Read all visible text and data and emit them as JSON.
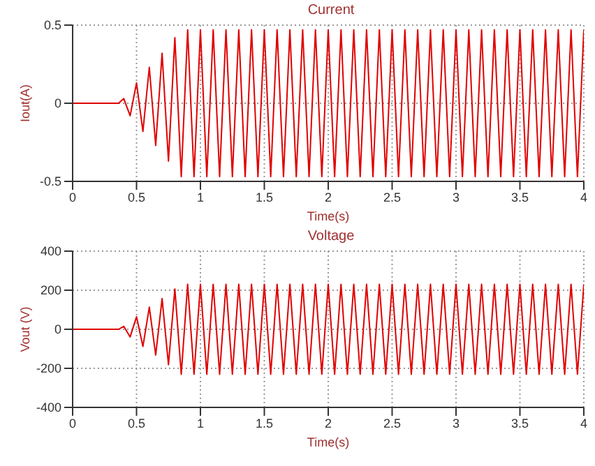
{
  "chart_data": [
    {
      "type": "line",
      "title": "Current",
      "xlabel": "Time(s)",
      "ylabel": "Iout(A)",
      "color": "#e00000",
      "grid": true,
      "xlim": [
        0,
        4
      ],
      "ylim": [
        -0.5,
        0.5
      ],
      "xticks": [
        0,
        0.5,
        1,
        1.5,
        2,
        2.5,
        3,
        3.5,
        4
      ],
      "yticks": [
        -0.5,
        0,
        0.5
      ],
      "x": [
        0,
        0.36,
        0.4,
        0.45,
        0.5,
        0.55,
        0.6,
        0.65,
        0.7,
        0.75,
        0.8,
        0.85,
        0.9,
        0.95,
        1,
        1.05,
        1.1,
        1.15,
        1.2,
        1.25,
        1.3,
        1.35,
        1.4,
        1.45,
        1.5,
        1.55,
        1.6,
        1.65,
        1.7,
        1.75,
        1.8,
        1.85,
        1.9,
        1.95,
        2,
        2.05,
        2.1,
        2.15,
        2.2,
        2.25,
        2.3,
        2.35,
        2.4,
        2.45,
        2.5,
        2.55,
        2.6,
        2.65,
        2.7,
        2.75,
        2.8,
        2.85,
        2.9,
        2.95,
        3,
        3.05,
        3.1,
        3.15,
        3.2,
        3.25,
        3.3,
        3.35,
        3.4,
        3.45,
        3.5,
        3.55,
        3.6,
        3.65,
        3.7,
        3.75,
        3.8,
        3.85,
        3.9,
        3.95,
        4
      ],
      "values": [
        0,
        0,
        0.03,
        -0.08,
        0.13,
        -0.18,
        0.23,
        -0.27,
        0.32,
        -0.37,
        0.42,
        -0.47,
        0.47,
        -0.47,
        0.47,
        -0.47,
        0.47,
        -0.47,
        0.47,
        -0.47,
        0.47,
        -0.47,
        0.47,
        -0.47,
        0.47,
        -0.47,
        0.47,
        -0.47,
        0.47,
        -0.47,
        0.47,
        -0.47,
        0.47,
        -0.47,
        0.47,
        -0.47,
        0.47,
        -0.47,
        0.47,
        -0.47,
        0.47,
        -0.47,
        0.47,
        -0.47,
        0.47,
        -0.47,
        0.47,
        -0.47,
        0.47,
        -0.47,
        0.47,
        -0.47,
        0.47,
        -0.47,
        0.47,
        -0.47,
        0.47,
        -0.47,
        0.47,
        -0.47,
        0.47,
        -0.47,
        0.47,
        -0.47,
        0.47,
        -0.47,
        0.47,
        -0.47,
        0.47,
        -0.47,
        0.47,
        -0.47,
        0.47,
        -0.47,
        0.47
      ]
    },
    {
      "type": "line",
      "title": "Voltage",
      "xlabel": "Time(s)",
      "ylabel": "Vout (V)",
      "color": "#e00000",
      "grid": true,
      "xlim": [
        0,
        4
      ],
      "ylim": [
        -400,
        400
      ],
      "xticks": [
        0,
        0.5,
        1,
        1.5,
        2,
        2.5,
        3,
        3.5,
        4
      ],
      "yticks": [
        -400,
        -200,
        0,
        200,
        400
      ],
      "x": [
        0,
        0.36,
        0.4,
        0.45,
        0.5,
        0.55,
        0.6,
        0.65,
        0.7,
        0.75,
        0.8,
        0.85,
        0.9,
        0.95,
        1,
        1.05,
        1.1,
        1.15,
        1.2,
        1.25,
        1.3,
        1.35,
        1.4,
        1.45,
        1.5,
        1.55,
        1.6,
        1.65,
        1.7,
        1.75,
        1.8,
        1.85,
        1.9,
        1.95,
        2,
        2.05,
        2.1,
        2.15,
        2.2,
        2.25,
        2.3,
        2.35,
        2.4,
        2.45,
        2.5,
        2.55,
        2.6,
        2.65,
        2.7,
        2.75,
        2.8,
        2.85,
        2.9,
        2.95,
        3,
        3.05,
        3.1,
        3.15,
        3.2,
        3.25,
        3.3,
        3.35,
        3.4,
        3.45,
        3.5,
        3.55,
        3.6,
        3.65,
        3.7,
        3.75,
        3.8,
        3.85,
        3.9,
        3.95,
        4
      ],
      "values": [
        0,
        0,
        15,
        -39,
        64,
        -88,
        113,
        -132,
        157,
        -181,
        206,
        -230,
        230,
        -230,
        230,
        -230,
        230,
        -230,
        230,
        -230,
        230,
        -230,
        230,
        -230,
        230,
        -230,
        230,
        -230,
        230,
        -230,
        230,
        -230,
        230,
        -230,
        230,
        -230,
        230,
        -230,
        230,
        -230,
        230,
        -230,
        230,
        -230,
        230,
        -230,
        230,
        -230,
        230,
        -230,
        230,
        -230,
        230,
        -230,
        230,
        -230,
        230,
        -230,
        230,
        -230,
        230,
        -230,
        230,
        -230,
        230,
        -230,
        230,
        -230,
        230,
        -230,
        230,
        -230,
        230,
        -230,
        230
      ]
    }
  ]
}
